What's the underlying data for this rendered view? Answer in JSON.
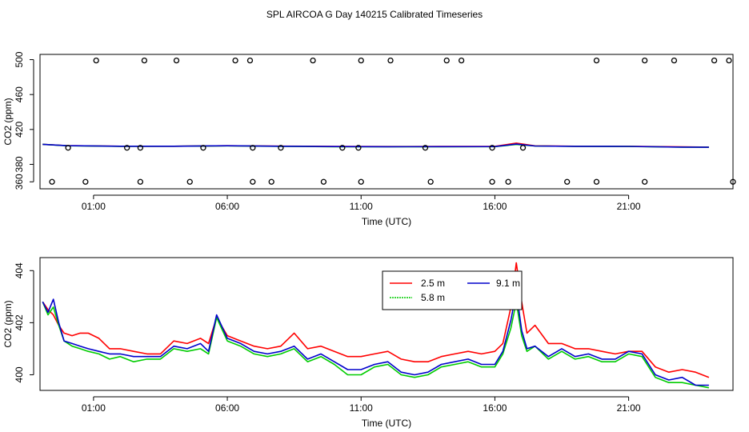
{
  "figure_title": "SPL AIRCOA G  Day 140215  Calibrated Timeseries",
  "chart_data": [
    {
      "type": "scatter+line",
      "title": "",
      "xlabel": "Time (UTC)",
      "ylabel": "CO2 (ppm)",
      "xlim": [
        -1.0,
        24.9
      ],
      "ylim": [
        352,
        506
      ],
      "x_ticks": [
        1,
        6,
        11,
        16,
        21
      ],
      "x_tick_labels": [
        "01:00",
        "06:00",
        "11:00",
        "16:00",
        "21:00"
      ],
      "y_ticks": [
        360,
        380,
        420,
        460,
        500
      ],
      "y_tick_labels": [
        "360",
        "380",
        "420",
        "460",
        "500"
      ],
      "grid": false,
      "series": [
        {
          "name": "2.5 m",
          "color": "#ff0000",
          "x": [
            -0.9,
            0.0,
            2.0,
            4.0,
            6.0,
            8.0,
            10.0,
            12.0,
            14.0,
            16.0,
            16.8,
            17.5,
            19.0,
            21.0,
            23.0,
            24.0
          ],
          "y": [
            403.0,
            401.5,
            400.8,
            400.8,
            401.3,
            400.9,
            400.6,
            400.4,
            400.6,
            400.7,
            404.3,
            401.2,
            400.8,
            400.7,
            400.1,
            399.8
          ]
        },
        {
          "name": "5.8 m",
          "color": "#00cc00",
          "x": [
            -0.9,
            0.0,
            2.0,
            4.0,
            6.0,
            8.0,
            10.0,
            12.0,
            14.0,
            16.0,
            16.8,
            17.5,
            19.0,
            21.0,
            23.0,
            24.0
          ],
          "y": [
            403.0,
            401.3,
            400.7,
            400.8,
            401.2,
            400.7,
            400.2,
            400.1,
            400.2,
            400.3,
            402.8,
            401.0,
            400.6,
            400.5,
            399.7,
            399.6
          ]
        },
        {
          "name": "9.1 m",
          "color": "#0000cc",
          "x": [
            -0.9,
            0.0,
            2.0,
            4.0,
            6.0,
            8.0,
            10.0,
            12.0,
            14.0,
            16.0,
            16.8,
            17.5,
            19.0,
            21.0,
            23.0,
            24.0
          ],
          "y": [
            403.0,
            401.4,
            400.8,
            400.8,
            401.3,
            400.8,
            400.4,
            400.2,
            400.3,
            400.4,
            403.2,
            401.0,
            400.7,
            400.6,
            399.8,
            399.6
          ]
        }
      ],
      "outlier_points": {
        "marker": "open circle",
        "high": {
          "x": [
            1.1,
            2.9,
            4.1,
            6.3,
            6.85,
            9.2,
            11.0,
            12.1,
            14.2,
            14.75,
            19.8,
            21.6,
            22.7,
            24.2,
            24.75
          ],
          "y": [
            499,
            499,
            499,
            499,
            499,
            499,
            499,
            499,
            499,
            499,
            499,
            499,
            499,
            499,
            499
          ]
        },
        "mid": {
          "x": [
            0.05,
            2.25,
            2.75,
            5.1,
            6.95,
            8.0,
            10.3,
            10.9,
            13.4,
            15.9,
            17.05
          ],
          "y": [
            399,
            399,
            399,
            399,
            399,
            399,
            399,
            399,
            399,
            399,
            399
          ]
        },
        "low": {
          "x": [
            -0.55,
            0.7,
            2.75,
            4.6,
            6.95,
            7.65,
            9.6,
            11.0,
            13.6,
            15.9,
            16.5,
            18.7,
            19.8,
            21.6,
            24.9
          ],
          "y": [
            360,
            360,
            360,
            360,
            360,
            360,
            360,
            360,
            360,
            360,
            360,
            360,
            360,
            360,
            360
          ]
        }
      }
    },
    {
      "type": "line",
      "title": "",
      "xlabel": "Time (UTC)",
      "ylabel": "CO2 (ppm)",
      "xlim": [
        -1.0,
        24.9
      ],
      "ylim": [
        399.4,
        404.5
      ],
      "x_ticks": [
        1,
        6,
        11,
        16,
        21
      ],
      "x_tick_labels": [
        "01:00",
        "06:00",
        "11:00",
        "16:00",
        "21:00"
      ],
      "y_ticks": [
        400,
        402,
        404
      ],
      "y_tick_labels": [
        "400",
        "402",
        "404"
      ],
      "grid": false,
      "legend_position": "top-center",
      "series": [
        {
          "name": "2.5 m",
          "color": "#ff0000",
          "x": [
            -0.9,
            -0.7,
            -0.5,
            -0.3,
            -0.1,
            0.2,
            0.5,
            0.8,
            1.2,
            1.6,
            2.0,
            2.5,
            3.0,
            3.5,
            4.0,
            4.5,
            5.0,
            5.3,
            5.6,
            6.0,
            6.5,
            7.0,
            7.5,
            8.0,
            8.5,
            9.0,
            9.5,
            10.0,
            10.5,
            11.0,
            11.5,
            12.0,
            12.5,
            13.0,
            13.5,
            14.0,
            14.5,
            15.0,
            15.5,
            16.0,
            16.3,
            16.6,
            16.8,
            17.0,
            17.2,
            17.5,
            18.0,
            18.5,
            19.0,
            19.5,
            20.0,
            20.5,
            21.0,
            21.5,
            22.0,
            22.5,
            23.0,
            23.5,
            24.0
          ],
          "y": [
            402.8,
            402.5,
            402.3,
            401.9,
            401.6,
            401.5,
            401.6,
            401.6,
            401.4,
            401.0,
            401.0,
            400.9,
            400.8,
            400.8,
            401.3,
            401.2,
            401.4,
            401.2,
            402.2,
            401.5,
            401.3,
            401.1,
            401.0,
            401.1,
            401.6,
            401.0,
            401.1,
            400.9,
            400.7,
            400.7,
            400.8,
            400.9,
            400.6,
            400.5,
            400.5,
            400.7,
            400.8,
            400.9,
            400.8,
            400.9,
            401.2,
            402.6,
            404.3,
            402.8,
            401.6,
            401.9,
            401.2,
            401.2,
            401.0,
            401.0,
            400.9,
            400.8,
            400.9,
            400.9,
            400.3,
            400.1,
            400.2,
            400.1,
            399.9
          ]
        },
        {
          "name": "5.8 m",
          "color": "#00cc00",
          "x": [
            -0.9,
            -0.7,
            -0.5,
            -0.3,
            -0.1,
            0.2,
            0.5,
            0.8,
            1.2,
            1.6,
            2.0,
            2.5,
            3.0,
            3.5,
            4.0,
            4.5,
            5.0,
            5.3,
            5.6,
            6.0,
            6.5,
            7.0,
            7.5,
            8.0,
            8.5,
            9.0,
            9.5,
            10.0,
            10.5,
            11.0,
            11.5,
            12.0,
            12.5,
            13.0,
            13.5,
            14.0,
            14.5,
            15.0,
            15.5,
            16.0,
            16.3,
            16.6,
            16.8,
            17.0,
            17.2,
            17.5,
            18.0,
            18.5,
            19.0,
            19.5,
            20.0,
            20.5,
            21.0,
            21.5,
            22.0,
            22.5,
            23.0,
            23.5,
            24.0
          ],
          "y": [
            402.8,
            402.3,
            402.6,
            401.9,
            401.3,
            401.1,
            401.0,
            400.9,
            400.8,
            400.6,
            400.7,
            400.5,
            400.6,
            400.6,
            401.0,
            400.9,
            401.0,
            400.8,
            402.2,
            401.3,
            401.1,
            400.8,
            400.7,
            400.8,
            401.0,
            400.5,
            400.7,
            400.4,
            400.0,
            400.0,
            400.3,
            400.4,
            400.0,
            399.9,
            400.0,
            400.3,
            400.4,
            400.5,
            400.3,
            400.3,
            400.8,
            401.8,
            402.8,
            401.5,
            400.9,
            401.1,
            400.6,
            400.9,
            400.6,
            400.7,
            400.5,
            400.5,
            400.8,
            400.7,
            399.9,
            399.7,
            399.7,
            399.6,
            399.5
          ]
        },
        {
          "name": "9.1 m",
          "color": "#0000cc",
          "x": [
            -0.9,
            -0.7,
            -0.5,
            -0.3,
            -0.1,
            0.2,
            0.5,
            0.8,
            1.2,
            1.6,
            2.0,
            2.5,
            3.0,
            3.5,
            4.0,
            4.5,
            5.0,
            5.3,
            5.6,
            6.0,
            6.5,
            7.0,
            7.5,
            8.0,
            8.5,
            9.0,
            9.5,
            10.0,
            10.5,
            11.0,
            11.5,
            12.0,
            12.5,
            13.0,
            13.5,
            14.0,
            14.5,
            15.0,
            15.5,
            16.0,
            16.3,
            16.6,
            16.8,
            17.0,
            17.2,
            17.5,
            18.0,
            18.5,
            19.0,
            19.5,
            20.0,
            20.5,
            21.0,
            21.5,
            22.0,
            22.5,
            23.0,
            23.5,
            24.0
          ],
          "y": [
            402.8,
            402.4,
            402.9,
            402.0,
            401.3,
            401.2,
            401.1,
            401.0,
            400.9,
            400.8,
            400.8,
            400.7,
            400.7,
            400.7,
            401.1,
            401.0,
            401.2,
            400.9,
            402.3,
            401.4,
            401.2,
            400.9,
            400.8,
            400.9,
            401.1,
            400.6,
            400.8,
            400.5,
            400.2,
            400.2,
            400.4,
            400.5,
            400.1,
            400.0,
            400.1,
            400.4,
            400.5,
            400.6,
            400.4,
            400.4,
            400.9,
            402.1,
            403.2,
            401.7,
            401.0,
            401.1,
            400.7,
            401.0,
            400.7,
            400.8,
            400.6,
            400.6,
            400.9,
            400.8,
            400.0,
            399.8,
            399.9,
            399.6,
            399.6
          ]
        }
      ]
    }
  ]
}
